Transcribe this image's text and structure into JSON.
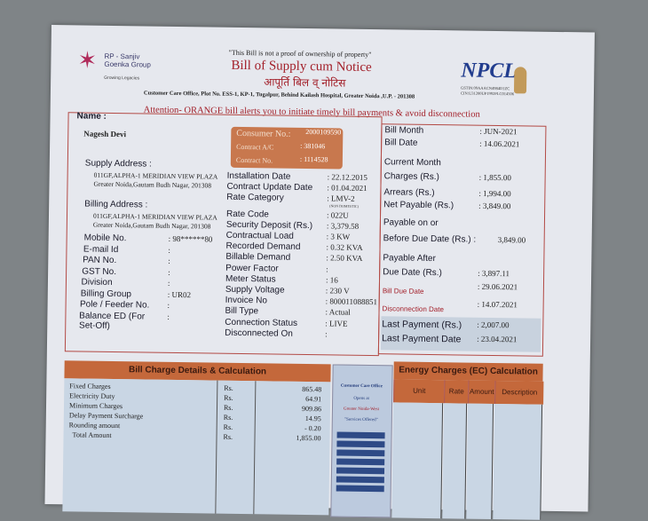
{
  "header": {
    "brand": "RP - Sanjiv Goenka Group",
    "tagline": "Growing Legacies",
    "disclaimer": "\"This Bill is not a proof of ownership of property\"",
    "title": "Bill of Supply cum Notice",
    "title_hindi": "आपूर्ति बिल व् नोटिस",
    "address": "Customer Care Office, Plot No. ESS-1, KP-1, Tugalpur, Behind Kailash Hospital, Greater Noida ,U.P. - 201308",
    "attention": "Attention- ORANGE bill alerts you to initiate timely bill payments & avoid disconnection",
    "npcl": "NPCL",
    "gstin": "GSTIN:09AAACN4984D1ZC",
    "cin": "CIN:U31200UP1992PLC014506"
  },
  "customer": {
    "name_label": "Name :",
    "name": "Nagesh Devi",
    "supply_label": "Supply Address :",
    "supply_1": "011GF,ALPHA-1 MERIDIAN VIEW PLAZA",
    "supply_2": "Greater Noida,Gautam Budh Nagar, 201308",
    "billing_label": "Billing Address :",
    "billing_1": "011GF,ALPHA-1 MERIDIAN VIEW PLAZA",
    "billing_2": "Greater Noida,Gautam Budh Nagar, 201308",
    "fields": [
      {
        "label": "Mobile No.",
        "value": ": 98******80"
      },
      {
        "label": "E-mail Id",
        "value": ":"
      },
      {
        "label": "PAN No.",
        "value": ":"
      },
      {
        "label": "GST No.",
        "value": ":"
      },
      {
        "label": "Division",
        "value": ":"
      },
      {
        "label": "Billing Group",
        "value": ": UR02"
      },
      {
        "label": "Pole / Feeder No.",
        "value": ":"
      },
      {
        "label": "Balance ED (For Set-Off)",
        "value": ":"
      }
    ]
  },
  "consumer": {
    "consumer_label": "Consumer No.:",
    "consumer_no": "2000109590",
    "contract_ac_label": "Contract A/C",
    "contract_ac": ": 381046",
    "contract_no_label": "Contract No.",
    "contract_no": ": 1114528"
  },
  "connection": [
    {
      "label": "Installation Date",
      "value": ": 22.12.2015"
    },
    {
      "label": "Contract Update Date",
      "value": ": 01.04.2021"
    },
    {
      "label": "Rate Category",
      "value": ": LMV-2"
    },
    {
      "label": "Rate Code",
      "value": ": 022U"
    },
    {
      "label": "Security Deposit (Rs.)",
      "value": ": 3,379.58"
    },
    {
      "label": "Contractual Load",
      "value": ": 3 KW"
    },
    {
      "label": "Recorded Demand",
      "value": ": 0.32 KVA"
    },
    {
      "label": "Billable Demand",
      "value": ": 2.50 KVA"
    },
    {
      "label": "Power Factor",
      "value": ":"
    },
    {
      "label": "Meter  Status",
      "value": ": 16"
    },
    {
      "label": "Supply Voltage",
      "value": ": 230 V"
    },
    {
      "label": "Invoice No",
      "value": ": 800011088851"
    },
    {
      "label": "Bill Type",
      "value": ": Actual"
    },
    {
      "label": "Connection Status",
      "value": ": LIVE"
    },
    {
      "label": "Disconnected On",
      "value": ":"
    }
  ],
  "rate_note": "(NON DOMESTIC)",
  "summary": [
    {
      "label": "Bill Month",
      "value": ":   JUN-2021"
    },
    {
      "label": "Bill Date",
      "value": ":   14.06.2021"
    },
    {
      "label": "Current Month",
      "value": ""
    },
    {
      "label": "Charges (Rs.)",
      "value": ":   1,855.00"
    },
    {
      "label": "Arrears (Rs.)",
      "value": ":   1,994.00"
    },
    {
      "label": "Net Payable (Rs.)",
      "value": ":   3,849.00"
    },
    {
      "label": "Payable on or",
      "value": ""
    },
    {
      "label": "Before Due Date (Rs.) :",
      "value": "3,849.00"
    },
    {
      "label": "Payable After",
      "value": ""
    },
    {
      "label": "Due Date (Rs.)",
      "value": ":   3,897.11"
    },
    {
      "label": "Bill Due Date",
      "value": ":   29.06.2021"
    },
    {
      "label": "Disconnection Date",
      "value": ":   14.07.2021"
    },
    {
      "label": "Last Payment (Rs.)",
      "value": ":   2,007.00"
    },
    {
      "label": "Last Payment Date",
      "value": ":   23.04.2021"
    }
  ],
  "charges": {
    "title": "Bill Charge Details & Calculation",
    "rows": [
      {
        "item": "Fixed Charges",
        "cur": "Rs.",
        "amount": "865.48"
      },
      {
        "item": "Electricity Duty",
        "cur": "Rs.",
        "amount": "64.91"
      },
      {
        "item": "Minimum Charges",
        "cur": "Rs.",
        "amount": "909.86"
      },
      {
        "item": "Delay Payment Surcharge",
        "cur": "Rs.",
        "amount": "14.95"
      },
      {
        "item": "Rounding amount",
        "cur": "Rs.",
        "amount": "- 0.20"
      },
      {
        "item": "Total Amount",
        "cur": "Rs.",
        "amount": "1,855.00"
      }
    ]
  },
  "office": {
    "line1": "Customer Care Office",
    "line2": "Opens at",
    "line3": "Greater Noida-West",
    "line4": "\"Services Offered\""
  },
  "energy": {
    "title": "Energy Charges (EC) Calculation",
    "columns": [
      "Unit",
      "Rate",
      "Amount",
      "Description"
    ]
  },
  "colors": {
    "orange": "#c4683b",
    "red": "#a3202a",
    "navy": "#2e4a86"
  }
}
